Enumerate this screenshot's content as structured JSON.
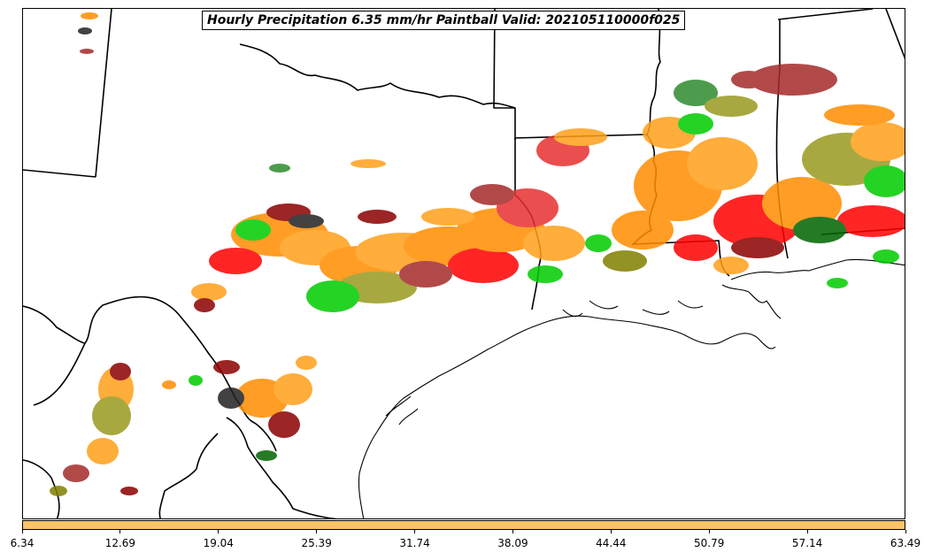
{
  "title": "Hourly Precipitation 6.35 mm/hr Paintball Valid: 202105110000f025",
  "colorbar": {
    "color": "#ffc266",
    "ticks": [
      "6.34",
      "12.69",
      "19.04",
      "25.39",
      "31.74",
      "38.09",
      "44.44",
      "50.79",
      "57.14",
      "63.49"
    ]
  },
  "colors": {
    "member_colors": [
      "#ff8c00",
      "#ff9f1a",
      "#ff0000",
      "#e83030",
      "#8b0000",
      "#a52a2a",
      "#00cc00",
      "#2e8b2e",
      "#006400",
      "#9a9a20",
      "#808000",
      "#222222"
    ],
    "boundary": "#000000"
  },
  "map": {
    "region": "South-central United States / Gulf Coast",
    "features": [
      "state boundaries",
      "coastline",
      "precipitation paintball contours"
    ]
  }
}
